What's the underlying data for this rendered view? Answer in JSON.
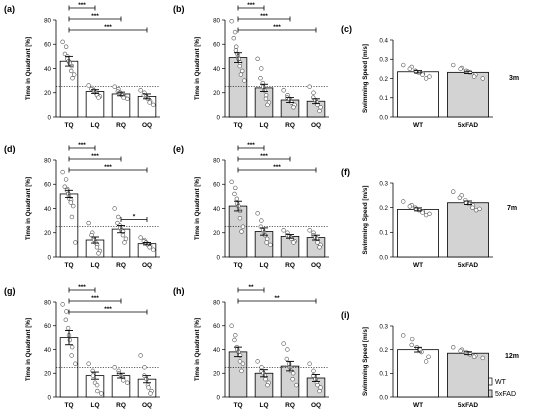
{
  "figure": {
    "row_labels": [
      "3m",
      "7m",
      "12m"
    ],
    "legend": [
      {
        "label": "WT",
        "color": "#ffffff"
      },
      {
        "label": "5xFAD",
        "color": "#d3d3d3"
      }
    ],
    "colors": {
      "wt": "#ffffff",
      "fad": "#d3d3d3",
      "line": "#000000"
    }
  },
  "chart_data": [
    {
      "panel": "(a)",
      "type": "bar",
      "group": "WT",
      "ylabel": "Time in Quadrant [%]",
      "ylim": [
        0,
        80
      ],
      "yticks": [
        0,
        20,
        40,
        60,
        80
      ],
      "categories": [
        "TQ",
        "LQ",
        "RQ",
        "OQ"
      ],
      "values": [
        46,
        21,
        19,
        17
      ],
      "sem": [
        4,
        1.5,
        1.5,
        2
      ],
      "chance_level": 25,
      "points": [
        [
          62,
          58,
          52,
          50,
          48,
          46,
          45,
          44,
          42,
          38,
          35,
          32
        ],
        [
          26,
          24,
          23,
          22,
          21,
          20,
          19,
          18,
          17,
          16
        ],
        [
          25,
          23,
          21,
          20,
          19,
          18,
          17,
          16,
          15
        ],
        [
          22,
          20,
          18,
          17,
          16,
          15,
          13,
          12,
          10
        ]
      ],
      "significance": [
        {
          "from": "TQ",
          "to": "LQ",
          "label": "***"
        },
        {
          "from": "TQ",
          "to": "RQ",
          "label": "***"
        },
        {
          "from": "TQ",
          "to": "OQ",
          "label": "***"
        }
      ]
    },
    {
      "panel": "(b)",
      "type": "bar",
      "group": "5xFAD",
      "ylabel": "Time in Quadrant [%]",
      "ylim": [
        0,
        80
      ],
      "yticks": [
        0,
        20,
        40,
        60,
        80
      ],
      "categories": [
        "TQ",
        "LQ",
        "RQ",
        "OQ"
      ],
      "values": [
        49,
        24,
        14,
        13
      ],
      "sem": [
        4,
        3,
        2,
        2
      ],
      "chance_level": 25,
      "points": [
        [
          79,
          70,
          65,
          58,
          55,
          52,
          50,
          48,
          45,
          42,
          38,
          35,
          30
        ],
        [
          48,
          40,
          32,
          28,
          25,
          22,
          18,
          15,
          12,
          10
        ],
        [
          22,
          18,
          16,
          15,
          13,
          12,
          10,
          8
        ],
        [
          25,
          20,
          16,
          14,
          12,
          10,
          8,
          5
        ]
      ],
      "significance": [
        {
          "from": "TQ",
          "to": "LQ",
          "label": "***"
        },
        {
          "from": "TQ",
          "to": "RQ",
          "label": "***"
        },
        {
          "from": "TQ",
          "to": "OQ",
          "label": "***"
        }
      ]
    },
    {
      "panel": "(c)",
      "type": "bar",
      "ylabel": "Swimming Speed [m/s]",
      "ylim": [
        0,
        0.4
      ],
      "yticks": [
        "0.0",
        "0.1",
        "0.2",
        "0.3",
        "0.4"
      ],
      "categories": [
        "WT",
        "5xFAD"
      ],
      "values": [
        0.235,
        0.232
      ],
      "sem": [
        0.006,
        0.006
      ],
      "points": [
        [
          0.27,
          0.26,
          0.25,
          0.24,
          0.235,
          0.23,
          0.225,
          0.22,
          0.21,
          0.2
        ],
        [
          0.27,
          0.255,
          0.25,
          0.24,
          0.235,
          0.23,
          0.22,
          0.21,
          0.2
        ]
      ]
    },
    {
      "panel": "(d)",
      "type": "bar",
      "group": "WT",
      "ylabel": "Time in Quadrant [%]",
      "ylim": [
        0,
        80
      ],
      "yticks": [
        0,
        20,
        40,
        60,
        80
      ],
      "categories": [
        "TQ",
        "LQ",
        "RQ",
        "OQ"
      ],
      "values": [
        52,
        14,
        23,
        11
      ],
      "sem": [
        3,
        2.5,
        3,
        1
      ],
      "chance_level": 25,
      "points": [
        [
          70,
          64,
          58,
          56,
          55,
          52,
          50,
          48,
          47,
          45,
          42,
          33,
          12
        ],
        [
          28,
          20,
          18,
          15,
          14,
          12,
          10,
          8,
          5,
          3
        ],
        [
          40,
          33,
          28,
          26,
          24,
          22,
          21,
          18,
          15,
          12
        ],
        [
          16,
          14,
          13,
          12,
          11,
          10,
          9,
          8,
          6
        ]
      ],
      "significance": [
        {
          "from": "TQ",
          "to": "LQ",
          "label": "***"
        },
        {
          "from": "TQ",
          "to": "RQ",
          "label": "***"
        },
        {
          "from": "TQ",
          "to": "OQ",
          "label": "***"
        },
        {
          "from": "RQ",
          "to": "OQ",
          "label": "*"
        }
      ]
    },
    {
      "panel": "(e)",
      "type": "bar",
      "group": "5xFAD",
      "ylabel": "Time in Quadrant [%]",
      "ylim": [
        0,
        80
      ],
      "yticks": [
        0,
        20,
        40,
        60,
        80
      ],
      "categories": [
        "TQ",
        "LQ",
        "RQ",
        "OQ"
      ],
      "values": [
        42,
        21,
        17,
        16
      ],
      "sem": [
        4,
        3,
        1.5,
        2
      ],
      "chance_level": 25,
      "points": [
        [
          62,
          57,
          52,
          48,
          44,
          42,
          38,
          32,
          25,
          21
        ],
        [
          36,
          30,
          25,
          22,
          20,
          18,
          15,
          12,
          10
        ],
        [
          22,
          20,
          18,
          17,
          16,
          15,
          13,
          12
        ],
        [
          22,
          20,
          18,
          16,
          15,
          12,
          10,
          8
        ]
      ],
      "significance": [
        {
          "from": "TQ",
          "to": "LQ",
          "label": "***"
        },
        {
          "from": "TQ",
          "to": "RQ",
          "label": "***"
        },
        {
          "from": "TQ",
          "to": "OQ",
          "label": "***"
        }
      ]
    },
    {
      "panel": "(f)",
      "type": "bar",
      "ylabel": "Swimming Speed [m/s]",
      "ylim": [
        0,
        0.3
      ],
      "yticks": [
        "0.0",
        "0.1",
        "0.2",
        "0.3"
      ],
      "categories": [
        "WT",
        "5xFAD"
      ],
      "values": [
        0.193,
        0.22
      ],
      "sem": [
        0.006,
        0.007
      ],
      "points": [
        [
          0.225,
          0.21,
          0.205,
          0.2,
          0.195,
          0.19,
          0.185,
          0.18,
          0.175,
          0.17
        ],
        [
          0.265,
          0.25,
          0.24,
          0.23,
          0.22,
          0.215,
          0.21,
          0.2,
          0.195,
          0.19
        ]
      ]
    },
    {
      "panel": "(g)",
      "type": "bar",
      "group": "WT",
      "ylabel": "Time in Quadrant [%]",
      "ylim": [
        0,
        80
      ],
      "yticks": [
        0,
        20,
        40,
        60,
        80
      ],
      "categories": [
        "TQ",
        "LQ",
        "RQ",
        "OQ"
      ],
      "values": [
        50,
        18,
        18,
        15
      ],
      "sem": [
        6,
        3,
        2,
        3
      ],
      "chance_level": 25,
      "points": [
        [
          78,
          72,
          65,
          58,
          52,
          48,
          42,
          35,
          28
        ],
        [
          28,
          22,
          18,
          12,
          10,
          5,
          3
        ],
        [
          25,
          22,
          20,
          18,
          16,
          14,
          12
        ],
        [
          35,
          25,
          18,
          15,
          10,
          8,
          5,
          3
        ]
      ],
      "significance": [
        {
          "from": "TQ",
          "to": "LQ",
          "label": "***"
        },
        {
          "from": "TQ",
          "to": "RQ",
          "label": "***"
        },
        {
          "from": "TQ",
          "to": "OQ",
          "label": "***"
        }
      ]
    },
    {
      "panel": "(h)",
      "type": "bar",
      "group": "5xFAD",
      "ylabel": "Time in Quadrant [%]",
      "ylim": [
        0,
        80
      ],
      "yticks": [
        0,
        20,
        40,
        60,
        80
      ],
      "categories": [
        "TQ",
        "LQ",
        "RQ",
        "OQ"
      ],
      "values": [
        38,
        20,
        26,
        16
      ],
      "sem": [
        4,
        3,
        4,
        3
      ],
      "chance_level": 25,
      "points": [
        [
          60,
          52,
          48,
          42,
          40,
          38,
          35,
          30,
          28,
          22
        ],
        [
          30,
          25,
          22,
          20,
          18,
          15,
          12,
          10
        ],
        [
          45,
          40,
          32,
          28,
          25,
          22,
          20,
          15,
          10
        ],
        [
          28,
          22,
          18,
          15,
          12,
          10,
          8,
          5
        ]
      ],
      "significance": [
        {
          "from": "TQ",
          "to": "LQ",
          "label": "**"
        },
        {
          "from": "TQ",
          "to": "OQ",
          "label": "**"
        }
      ]
    },
    {
      "panel": "(i)",
      "type": "bar",
      "ylabel": "Swimming Speed [m/s]",
      "ylim": [
        0,
        0.3
      ],
      "yticks": [
        "0.0",
        "0.1",
        "0.2",
        "0.3"
      ],
      "categories": [
        "WT",
        "5xFAD"
      ],
      "values": [
        0.2,
        0.185
      ],
      "sem": [
        0.01,
        0.006
      ],
      "points": [
        [
          0.26,
          0.245,
          0.22,
          0.21,
          0.2,
          0.19,
          0.17,
          0.15
        ],
        [
          0.21,
          0.2,
          0.195,
          0.19,
          0.185,
          0.18,
          0.175,
          0.17,
          0.165
        ]
      ]
    }
  ]
}
